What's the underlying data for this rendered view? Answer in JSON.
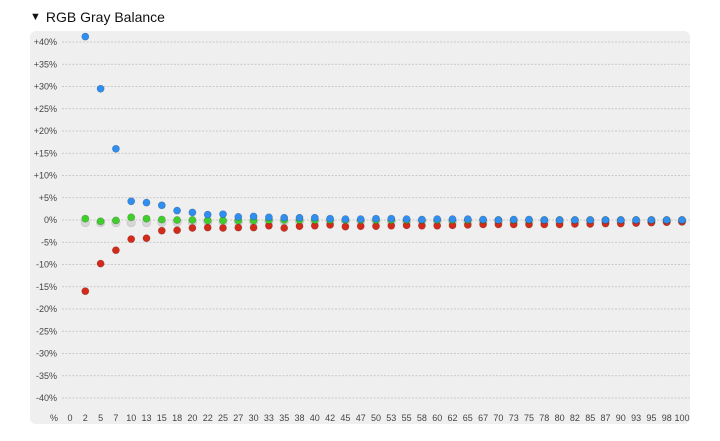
{
  "section": {
    "caret": "▼",
    "title": "RGB Gray Balance"
  },
  "chart_data": {
    "type": "scatter",
    "title": "RGB Gray Balance",
    "x_unit_label": "%",
    "x_ticks": [
      "0",
      "2",
      "5",
      "7",
      "10",
      "13",
      "15",
      "18",
      "20",
      "22",
      "25",
      "27",
      "30",
      "33",
      "35",
      "38",
      "40",
      "42",
      "45",
      "47",
      "50",
      "53",
      "55",
      "58",
      "60",
      "62",
      "65",
      "67",
      "70",
      "73",
      "75",
      "78",
      "80",
      "82",
      "85",
      "87",
      "90",
      "93",
      "95",
      "98",
      "100"
    ],
    "y_ticks": [
      "+40%",
      "+35%",
      "+30%",
      "+25%",
      "+20%",
      "+15%",
      "+10%",
      "+5%",
      "0%",
      "-5%",
      "-10%",
      "-15%",
      "-20%",
      "-25%",
      "-30%",
      "-35%",
      "-40%"
    ],
    "ylim": [
      -40,
      40
    ],
    "grid": true,
    "colors": {
      "red": "#d42a1a",
      "green": "#3fcf2a",
      "blue": "#2f8ef0",
      "gray": "#d6d6d6",
      "plot_bg": "#efefef"
    },
    "series": [
      {
        "key": "gray",
        "x": [
          2,
          5,
          7,
          10,
          13,
          15,
          18,
          20,
          22,
          25,
          27,
          30,
          33,
          35,
          38,
          40,
          42,
          45,
          47,
          50,
          53,
          55,
          58,
          60,
          62,
          65,
          67,
          70,
          73,
          75,
          78,
          80,
          82,
          85,
          87,
          90,
          93,
          95,
          98,
          100
        ],
        "y": [
          -0.6,
          -0.6,
          -0.6,
          -0.6,
          -0.6,
          -0.5,
          -0.5,
          -0.5,
          -0.4,
          -0.4,
          -0.4,
          -0.4,
          -0.3,
          -0.3,
          -0.3,
          -0.3,
          -0.3,
          -0.3,
          -0.3,
          -0.3,
          -0.3,
          -0.3,
          -0.3,
          -0.3,
          -0.3,
          -0.3,
          -0.3,
          -0.3,
          -0.3,
          -0.3,
          -0.3,
          -0.3,
          -0.3,
          -0.3,
          -0.3,
          -0.3,
          -0.3,
          -0.3,
          -0.3,
          -0.3
        ]
      },
      {
        "key": "red",
        "x": [
          2,
          5,
          7,
          10,
          13,
          15,
          18,
          20,
          22,
          25,
          27,
          30,
          33,
          35,
          38,
          40,
          42,
          45,
          47,
          50,
          53,
          55,
          58,
          60,
          62,
          65,
          67,
          70,
          73,
          75,
          78,
          80,
          82,
          85,
          87,
          90,
          93,
          95,
          98,
          100
        ],
        "y": [
          -16.0,
          -9.8,
          -6.8,
          -4.3,
          -4.1,
          -2.4,
          -2.3,
          -1.8,
          -1.7,
          -1.8,
          -1.7,
          -1.7,
          -1.3,
          -1.8,
          -1.4,
          -1.3,
          -1.1,
          -1.5,
          -1.4,
          -1.4,
          -1.3,
          -1.2,
          -1.3,
          -1.3,
          -1.2,
          -1.1,
          -1.0,
          -1.0,
          -1.0,
          -1.0,
          -1.0,
          -1.0,
          -0.9,
          -0.9,
          -0.8,
          -0.8,
          -0.7,
          -0.6,
          -0.5,
          -0.4
        ]
      },
      {
        "key": "green",
        "x": [
          2,
          5,
          7,
          10,
          13,
          15,
          18,
          20,
          22,
          25,
          27,
          30,
          33,
          35,
          38,
          40,
          42,
          45,
          47,
          50,
          53,
          55,
          58,
          60,
          62,
          65,
          67,
          70,
          73,
          75,
          78,
          80,
          82,
          85,
          87,
          90,
          93,
          95,
          98,
          100
        ],
        "y": [
          0.3,
          -0.3,
          -0.1,
          0.6,
          0.3,
          0.1,
          0.0,
          0.0,
          -0.1,
          -0.1,
          -0.1,
          -0.1,
          0.0,
          0.0,
          0.0,
          0.0,
          0.0,
          0.0,
          0.0,
          0.0,
          0.0,
          0.0,
          0.0,
          0.0,
          0.0,
          0.0,
          0.0,
          0.0,
          0.0,
          0.0,
          0.0,
          0.0,
          0.0,
          0.0,
          0.0,
          0.0,
          0.0,
          0.0,
          0.0,
          0.0
        ]
      },
      {
        "key": "blue",
        "x": [
          2,
          5,
          7,
          10,
          13,
          15,
          18,
          20,
          22,
          25,
          27,
          30,
          33,
          35,
          38,
          40,
          42,
          45,
          47,
          50,
          53,
          55,
          58,
          60,
          62,
          65,
          67,
          70,
          73,
          75,
          78,
          80,
          82,
          85,
          87,
          90,
          93,
          95,
          98,
          100
        ],
        "y": [
          41.2,
          29.5,
          16.0,
          4.2,
          3.9,
          3.3,
          2.1,
          1.7,
          1.2,
          1.3,
          0.7,
          0.8,
          0.6,
          0.5,
          0.5,
          0.5,
          0.3,
          0.2,
          0.2,
          0.3,
          0.3,
          0.2,
          0.1,
          0.2,
          0.2,
          0.2,
          0.1,
          0.0,
          0.1,
          0.1,
          0.0,
          0.0,
          0.0,
          0.0,
          0.0,
          0.0,
          0.0,
          0.0,
          0.0,
          0.0
        ]
      }
    ]
  }
}
